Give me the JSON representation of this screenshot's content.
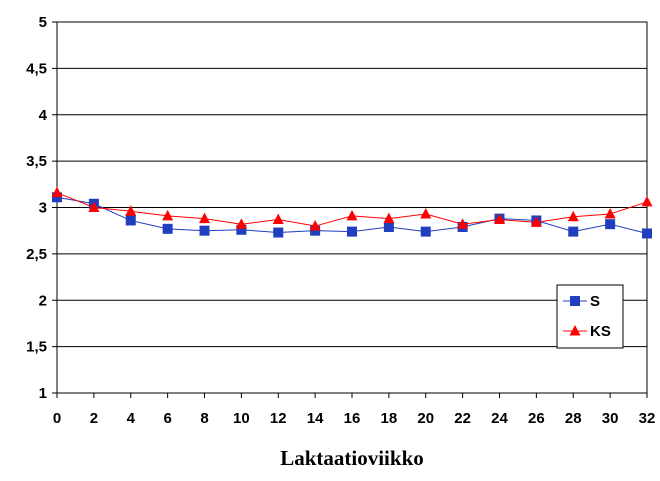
{
  "chart_data": {
    "type": "line",
    "title": "",
    "xlabel": "Laktaatioviikko",
    "ylabel": "",
    "x": [
      0,
      2,
      4,
      6,
      8,
      10,
      12,
      14,
      16,
      18,
      20,
      22,
      24,
      26,
      28,
      30,
      32
    ],
    "xticks": [
      "0",
      "2",
      "4",
      "6",
      "8",
      "10",
      "12",
      "14",
      "16",
      "18",
      "20",
      "22",
      "24",
      "26",
      "28",
      "30",
      "32"
    ],
    "yticks": [
      "1",
      "1,5",
      "2",
      "2,5",
      "3",
      "3,5",
      "4",
      "4,5",
      "5"
    ],
    "yticks_values": [
      1,
      1.5,
      2,
      2.5,
      3,
      3.5,
      4,
      4.5,
      5
    ],
    "ylim": [
      1,
      5
    ],
    "grid": "horizontal",
    "legend_position": "right",
    "series": [
      {
        "name": "S",
        "color": "#1f3fbf",
        "marker": "square",
        "values": [
          3.11,
          3.04,
          2.86,
          2.77,
          2.75,
          2.76,
          2.73,
          2.75,
          2.74,
          2.79,
          2.74,
          2.79,
          2.88,
          2.86,
          2.74,
          2.82,
          2.72
        ]
      },
      {
        "name": "KS",
        "color": "#ff0000",
        "marker": "triangle",
        "values": [
          3.16,
          3.0,
          2.96,
          2.91,
          2.88,
          2.82,
          2.87,
          2.8,
          2.91,
          2.88,
          2.93,
          2.82,
          2.87,
          2.84,
          2.9,
          2.93,
          3.06
        ]
      }
    ]
  }
}
